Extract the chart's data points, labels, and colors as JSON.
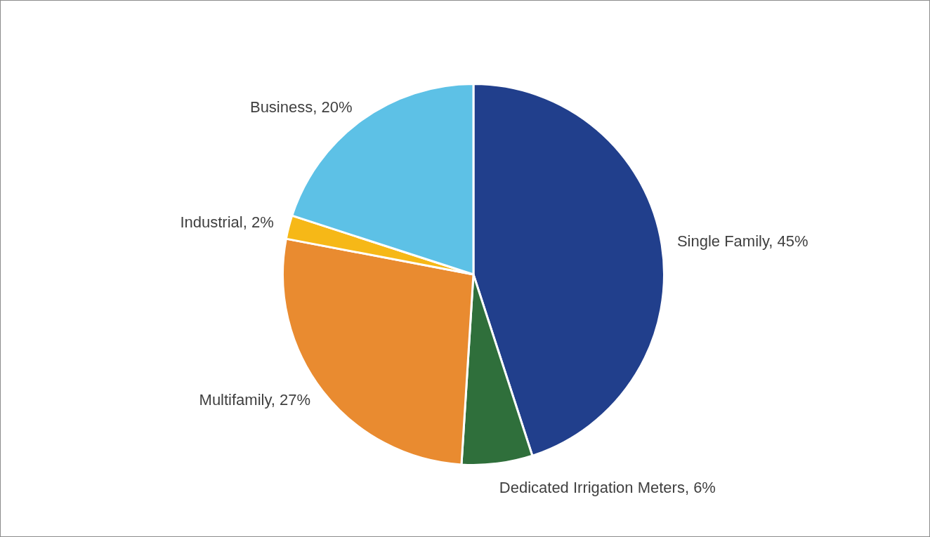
{
  "chart_data": {
    "type": "pie",
    "categories": [
      "Single Family",
      "Dedicated Irrigation Meters",
      "Multifamily",
      "Industrial",
      "Business"
    ],
    "values": [
      45,
      6,
      27,
      2,
      20
    ],
    "value_labels": [
      "45%",
      "6%",
      "27%",
      "2%",
      "20%"
    ],
    "colors": [
      "#213f8c",
      "#2f6f3b",
      "#e98b30",
      "#f6b817",
      "#5dc1e6"
    ],
    "legend": false
  }
}
